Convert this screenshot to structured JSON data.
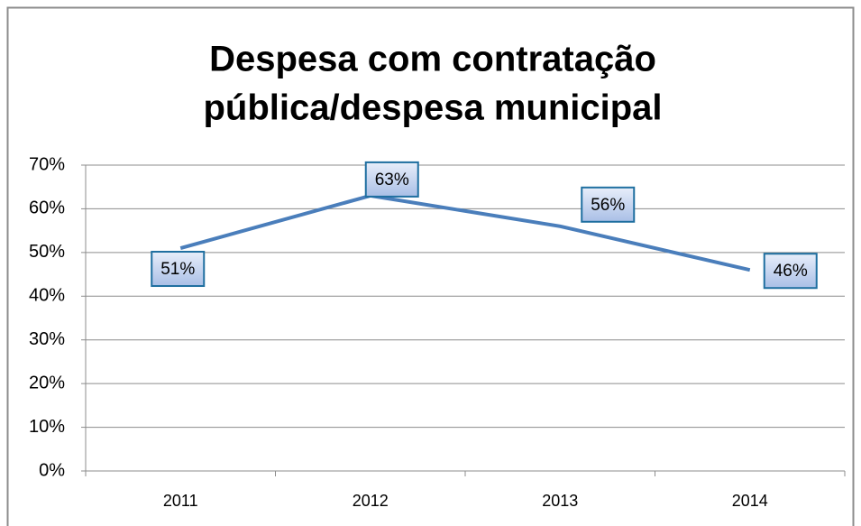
{
  "chart_data": {
    "type": "line",
    "title": [
      "Despesa com contratação",
      "pública/despesa municipal"
    ],
    "categories": [
      "2011",
      "2012",
      "2013",
      "2014"
    ],
    "values": [
      51,
      63,
      56,
      46
    ],
    "value_labels": [
      "51%",
      "63%",
      "56%",
      "46%"
    ],
    "color": "#4a7ebb",
    "ylim": [
      0,
      70
    ],
    "yticks": [
      {
        "value": 0,
        "label": "0%"
      },
      {
        "value": 10,
        "label": "10%"
      },
      {
        "value": 20,
        "label": "20%"
      },
      {
        "value": 30,
        "label": "30%"
      },
      {
        "value": 40,
        "label": "40%"
      },
      {
        "value": 50,
        "label": "50%"
      },
      {
        "value": 60,
        "label": "60%"
      },
      {
        "value": 70,
        "label": "70%"
      }
    ],
    "grid": true
  }
}
